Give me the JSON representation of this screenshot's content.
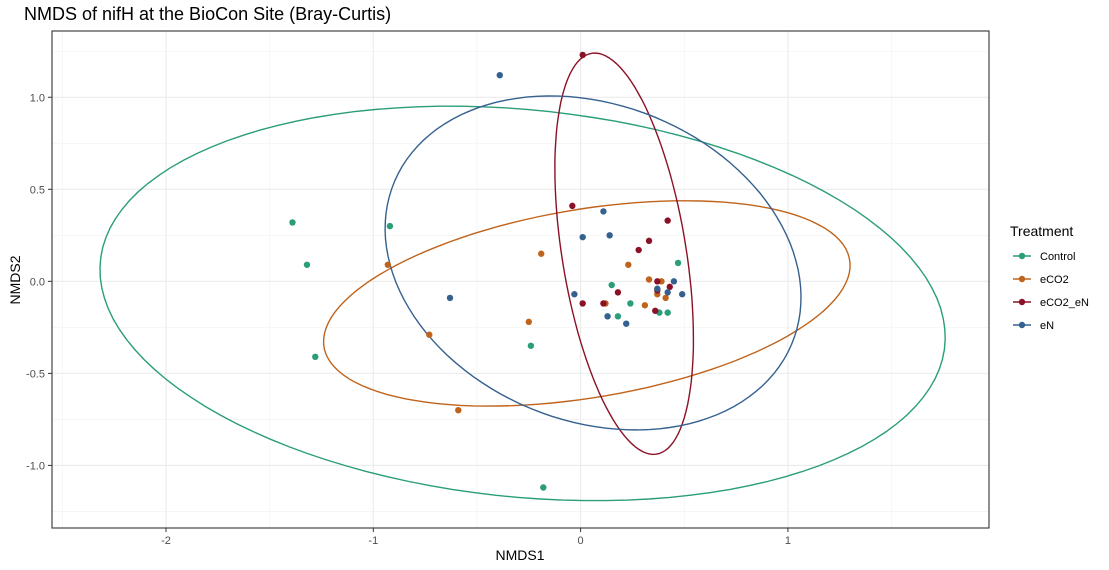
{
  "chart_data": {
    "type": "scatter",
    "title": "NMDS of nifH at the BioCon Site (Bray-Curtis)",
    "xlabel": "NMDS1",
    "ylabel": "NMDS2",
    "xlim": [
      -2.55,
      1.97
    ],
    "ylim": [
      -1.34,
      1.36
    ],
    "x_ticks": [
      -2,
      -1,
      0,
      1
    ],
    "x_tick_labels": [
      "-2",
      "-1",
      "0",
      "1"
    ],
    "y_ticks": [
      -1.0,
      -0.5,
      0.0,
      0.5,
      1.0
    ],
    "y_tick_labels": [
      "-1.0",
      "-0.5",
      "0.0",
      "0.5",
      "1.0"
    ],
    "grid": true,
    "legend": {
      "title": "Treatment",
      "position": "right"
    },
    "series": [
      {
        "name": "Control",
        "color": "#2a9d7a",
        "points": [
          [
            -1.39,
            0.32
          ],
          [
            -1.32,
            0.09
          ],
          [
            -1.28,
            -0.41
          ],
          [
            -0.92,
            0.3
          ],
          [
            -0.24,
            -0.35
          ],
          [
            -0.18,
            -1.12
          ],
          [
            0.15,
            -0.02
          ],
          [
            0.18,
            -0.19
          ],
          [
            0.24,
            -0.12
          ],
          [
            0.38,
            -0.17
          ],
          [
            0.42,
            -0.17
          ],
          [
            0.47,
            0.1
          ]
        ],
        "ellipse": {
          "cx": -0.28,
          "cy": -0.12,
          "rx": 2.05,
          "ry": 1.05,
          "angle_deg": -7
        }
      },
      {
        "name": "eCO2",
        "color": "#c0631b",
        "points": [
          [
            -0.93,
            0.09
          ],
          [
            -0.73,
            -0.29
          ],
          [
            -0.59,
            -0.7
          ],
          [
            -0.25,
            -0.22
          ],
          [
            -0.19,
            0.15
          ],
          [
            0.12,
            -0.12
          ],
          [
            0.23,
            0.09
          ],
          [
            0.31,
            -0.13
          ],
          [
            0.33,
            0.01
          ],
          [
            0.37,
            -0.07
          ],
          [
            0.39,
            0.0
          ],
          [
            0.41,
            -0.09
          ]
        ],
        "ellipse": {
          "cx": 0.03,
          "cy": -0.12,
          "rx": 1.29,
          "ry": 0.51,
          "angle_deg": 11
        }
      },
      {
        "name": "eCO2_eN",
        "color": "#8b1226",
        "points": [
          [
            0.01,
            1.23
          ],
          [
            -0.04,
            0.41
          ],
          [
            0.01,
            -0.12
          ],
          [
            0.11,
            -0.12
          ],
          [
            0.18,
            -0.06
          ],
          [
            0.28,
            0.17
          ],
          [
            0.33,
            0.22
          ],
          [
            0.36,
            -0.16
          ],
          [
            0.37,
            0.0
          ],
          [
            0.37,
            -0.05
          ],
          [
            0.42,
            0.33
          ],
          [
            0.43,
            -0.03
          ]
        ],
        "ellipse": {
          "cx": 0.21,
          "cy": 0.15,
          "rx": 0.3,
          "ry": 1.1,
          "angle_deg": 8
        }
      },
      {
        "name": "eN",
        "color": "#35618f",
        "points": [
          [
            -0.39,
            1.12
          ],
          [
            -0.63,
            -0.09
          ],
          [
            -0.03,
            -0.07
          ],
          [
            0.01,
            0.24
          ],
          [
            0.11,
            0.38
          ],
          [
            0.13,
            -0.19
          ],
          [
            0.14,
            0.25
          ],
          [
            0.22,
            -0.23
          ],
          [
            0.37,
            -0.04
          ],
          [
            0.42,
            -0.06
          ],
          [
            0.45,
            0.0
          ],
          [
            0.49,
            -0.07
          ]
        ],
        "ellipse": {
          "cx": 0.06,
          "cy": 0.1,
          "rx": 1.06,
          "ry": 0.84,
          "angle_deg": -32
        }
      }
    ]
  }
}
